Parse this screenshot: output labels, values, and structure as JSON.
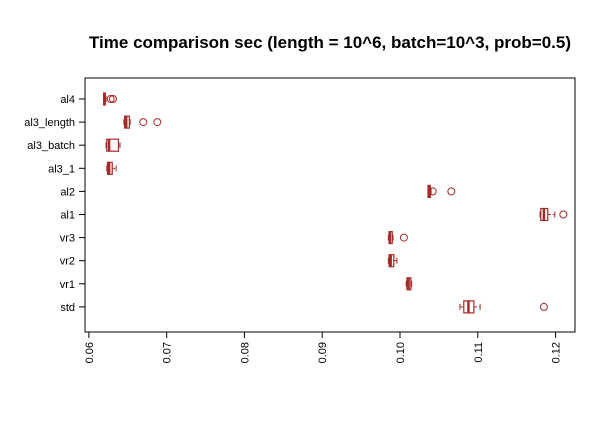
{
  "chart_data": {
    "type": "boxplot",
    "orientation": "horizontal",
    "title": "Time comparison sec (length = 10^6, batch=10^3, prob=0.5)",
    "xlabel": "",
    "ylabel": "",
    "xlim": [
      0.0595,
      0.1225
    ],
    "xticks": [
      0.06,
      0.07,
      0.08,
      0.09,
      0.1,
      0.11,
      0.12
    ],
    "xtick_labels": [
      "0.06",
      "0.07",
      "0.08",
      "0.09",
      "0.10",
      "0.11",
      "0.12"
    ],
    "color": "#a52a2a",
    "categories": [
      "al4",
      "al3_length",
      "al3_batch",
      "al3_1",
      "al2",
      "al1",
      "vr3",
      "vr2",
      "vr1",
      "std"
    ],
    "boxes": [
      {
        "label": "al4",
        "whisker_low": 0.0619,
        "q1": 0.0619,
        "median": 0.062,
        "q3": 0.0621,
        "whisker_high": 0.0622,
        "outliers": [
          0.0628,
          0.0631
        ]
      },
      {
        "label": "al3_length",
        "whisker_low": 0.0645,
        "q1": 0.0646,
        "median": 0.0648,
        "q3": 0.0652,
        "whisker_high": 0.0653,
        "outliers": [
          0.067,
          0.0688
        ]
      },
      {
        "label": "al3_batch",
        "whisker_low": 0.0622,
        "q1": 0.0623,
        "median": 0.0626,
        "q3": 0.0638,
        "whisker_high": 0.064,
        "outliers": []
      },
      {
        "label": "al3_1",
        "whisker_low": 0.0623,
        "q1": 0.0624,
        "median": 0.0626,
        "q3": 0.063,
        "whisker_high": 0.0635,
        "outliers": []
      },
      {
        "label": "al2",
        "whisker_low": 0.1036,
        "q1": 0.1036,
        "median": 0.1037,
        "q3": 0.1039,
        "whisker_high": 0.104,
        "outliers": [
          0.1042,
          0.1066
        ]
      },
      {
        "label": "al1",
        "whisker_low": 0.118,
        "q1": 0.1181,
        "median": 0.1185,
        "q3": 0.119,
        "whisker_high": 0.1199,
        "outliers": [
          0.121
        ]
      },
      {
        "label": "vr3",
        "whisker_low": 0.0985,
        "q1": 0.0986,
        "median": 0.0987,
        "q3": 0.099,
        "whisker_high": 0.0991,
        "outliers": [
          0.1005
        ]
      },
      {
        "label": "vr2",
        "whisker_low": 0.0985,
        "q1": 0.0986,
        "median": 0.0988,
        "q3": 0.0992,
        "whisker_high": 0.0996,
        "outliers": []
      },
      {
        "label": "vr1",
        "whisker_low": 0.1008,
        "q1": 0.1009,
        "median": 0.1011,
        "q3": 0.1014,
        "whisker_high": 0.1015,
        "outliers": []
      },
      {
        "label": "std",
        "whisker_low": 0.1077,
        "q1": 0.1082,
        "median": 0.1088,
        "q3": 0.1095,
        "whisker_high": 0.1103,
        "outliers": [
          0.1185
        ]
      }
    ],
    "grid": false,
    "legend": "none"
  }
}
